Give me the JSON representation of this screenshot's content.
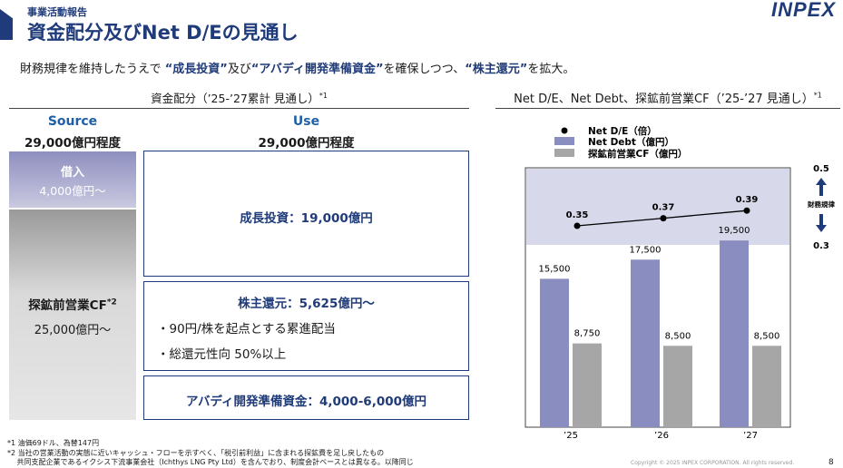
{
  "header": {
    "section_label": "事業活動報告",
    "title": "資金配分及びNet D/Eの見通し",
    "logo_text": "INPEX"
  },
  "lead": {
    "prefix": "財務規律を維持したうえで ",
    "item1": "“成長投資”",
    "mid1": "及び",
    "item2": "“アバディ開発準備資金”",
    "mid2": "を確保しつつ、",
    "item3": "“株主還元”",
    "suffix": "を拡大。"
  },
  "allocation": {
    "heading": "資金配分（’25-’27累計 見通し）",
    "heading_note": "*1",
    "source_label": "Source",
    "source_total": "29,000億円程度",
    "use_label": "Use",
    "use_total": "29,000億円程度",
    "borrowing_title": "借入",
    "borrowing_value": "4,000億円〜",
    "cf_title": "探鉱前営業CF",
    "cf_note": "*2",
    "cf_value": "25,000億円〜",
    "growth": "成長投資：19,000億円",
    "return_title": "株主還元：5,625億円〜",
    "return_bullet1": "・90円/株を起点とする累進配当",
    "return_bullet2": "・総還元性向 50%以上",
    "abadi": "アバディ開発準備資金：4,000-6,000億円"
  },
  "chart_heading": "Net D/E、Net Debt、探鉱前営業CF（’25-’27 見通し）",
  "chart_heading_note": "*1",
  "chart_data": {
    "type": "bar",
    "categories": [
      "’25",
      "’26",
      "’27"
    ],
    "series": [
      {
        "name": "Net D/E（倍）",
        "kind": "line",
        "values": [
          0.35,
          0.37,
          0.39
        ],
        "color": "#000000"
      },
      {
        "name": "Net Debt（億円）",
        "kind": "bar",
        "values": [
          15500,
          17500,
          19500
        ],
        "color": "#8a8dc0"
      },
      {
        "name": "探鉱前営業CF（億円）",
        "kind": "bar",
        "values": [
          8750,
          8500,
          8500
        ],
        "color": "#a6a6a6"
      }
    ],
    "value_labels": {
      "net_de": [
        "0.35",
        "0.37",
        "0.39"
      ],
      "net_debt": [
        "15,500",
        "17,500",
        "19,500"
      ],
      "cf": [
        "8,750",
        "8,500",
        "8,500"
      ]
    },
    "band": {
      "upper": "0.5",
      "lower": "0.3",
      "label": "財務規律",
      "color": "#d7d8ea"
    }
  },
  "footnotes": [
    "*1 油価69ドル、為替147円",
    "*2 当社の営業活動の実態に近いキャッシュ・フローを示すべく、「税引前利益」に含まれる探鉱費を足し戻したもの",
    "　 共同支配企業であるイクシス下流事業会社（Ichthys LNG Pty Ltd）を含んでおり、制度会計ベースとは異なる。以降同じ"
  ],
  "footer": {
    "copyright": "Copyright © 2025 INPEX CORPORATION. All rights reserved.",
    "page": "8"
  }
}
